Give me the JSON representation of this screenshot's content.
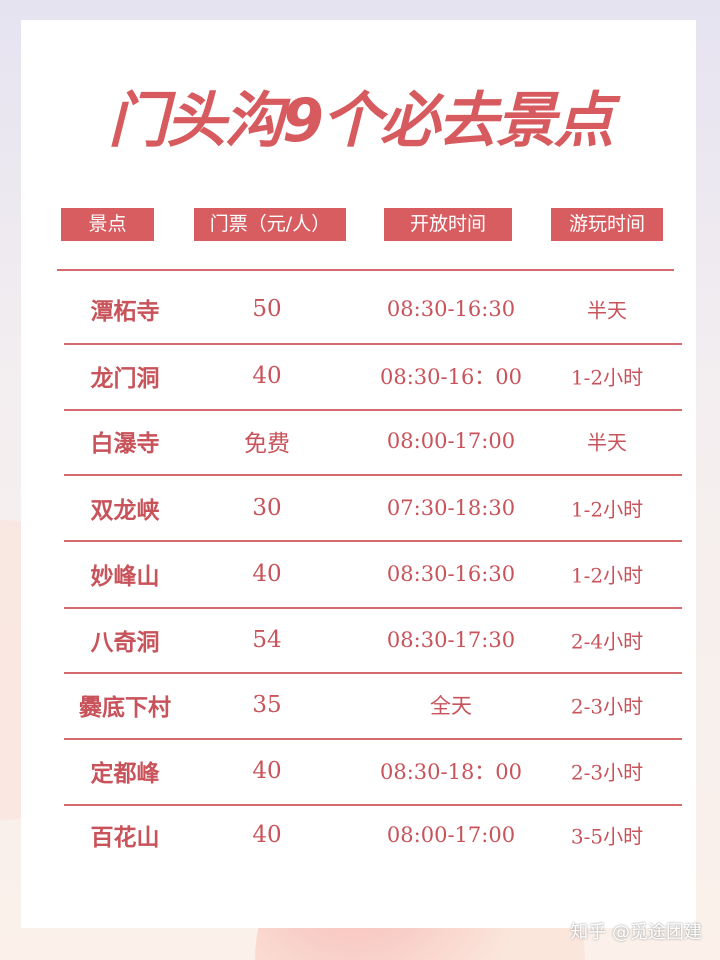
{
  "title": "门头沟9个必去景点",
  "headers": [
    "景点",
    "门票（元/人）",
    "开放时间",
    "游玩时间"
  ],
  "rows": [
    {
      "name": "潭柘寺",
      "price": "50",
      "hours": "08:30-16:30",
      "duration": "半天"
    },
    {
      "name": "龙门洞",
      "price": "40",
      "hours": "08:30-16：00",
      "duration": "1-2小时"
    },
    {
      "name": "白瀑寺",
      "price": "免费",
      "hours": "08:00-17:00",
      "duration": "半天"
    },
    {
      "name": "双龙峡",
      "price": "30",
      "hours": "07:30-18:30",
      "duration": "1-2小时"
    },
    {
      "name": "妙峰山",
      "price": "40",
      "hours": "08:30-16:30",
      "duration": "1-2小时"
    },
    {
      "name": "八奇洞",
      "price": "54",
      "hours": "08:30-17:30",
      "duration": "2-4小时"
    },
    {
      "name": "爨底下村",
      "price": "35",
      "hours": "全天",
      "duration": "2-3小时"
    },
    {
      "name": "定都峰",
      "price": "40",
      "hours": "08:30-18：00",
      "duration": "2-3小时"
    },
    {
      "name": "百花山",
      "price": "40",
      "hours": "08:00-17:00",
      "duration": "3-5小时"
    }
  ],
  "watermark": "知乎 @觅途团建",
  "colors": {
    "accent": "#d85d61",
    "text": "#c8535a"
  }
}
